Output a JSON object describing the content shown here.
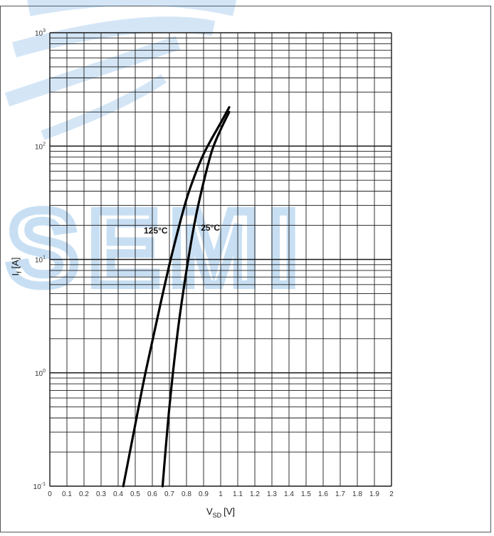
{
  "watermark": {
    "text": "SEMI",
    "color": "#3d8fd6"
  },
  "chart_data": {
    "type": "line",
    "xlabel": "V",
    "xlabel_sub": "SD",
    "xlabel_unit": "[V]",
    "ylabel": "I",
    "ylabel_sub": "f",
    "ylabel_unit": "[A]",
    "xlim": [
      0,
      2
    ],
    "ylim": [
      0.1,
      1000
    ],
    "yscale": "log",
    "grid": true,
    "x_ticks": [
      "0",
      "0.1",
      "0.2",
      "0.3",
      "0.4",
      "0.5",
      "0.6",
      "0.7",
      "0.8",
      "0.9",
      "1",
      "1.1",
      "1.2",
      "1.3",
      "1.4",
      "1.5",
      "1.6",
      "1.7",
      "1.8",
      "1.9",
      "2"
    ],
    "y_ticks": [
      {
        "base": "10",
        "exp": "-1",
        "value": 0.1
      },
      {
        "base": "10",
        "exp": "0",
        "value": 1
      },
      {
        "base": "10",
        "exp": "1",
        "value": 10
      },
      {
        "base": "10",
        "exp": "2",
        "value": 100
      },
      {
        "base": "10",
        "exp": "3",
        "value": 1000
      }
    ],
    "series": [
      {
        "name": "125°C",
        "label_at": {
          "x": 0.62,
          "y": 17
        },
        "x": [
          0.43,
          0.5,
          0.55,
          0.6,
          0.65,
          0.7,
          0.75,
          0.8,
          0.85,
          0.9,
          0.95,
          1.0,
          1.05
        ],
        "y": [
          0.1,
          0.35,
          0.85,
          1.9,
          4.2,
          9,
          18,
          34,
          56,
          85,
          118,
          160,
          220
        ]
      },
      {
        "name": "25°C",
        "label_at": {
          "x": 0.94,
          "y": 18
        },
        "x": [
          0.66,
          0.7,
          0.75,
          0.8,
          0.85,
          0.9,
          0.95,
          1.0,
          1.05
        ],
        "y": [
          0.1,
          0.5,
          2.4,
          8,
          22,
          48,
          92,
          140,
          200
        ]
      }
    ]
  }
}
